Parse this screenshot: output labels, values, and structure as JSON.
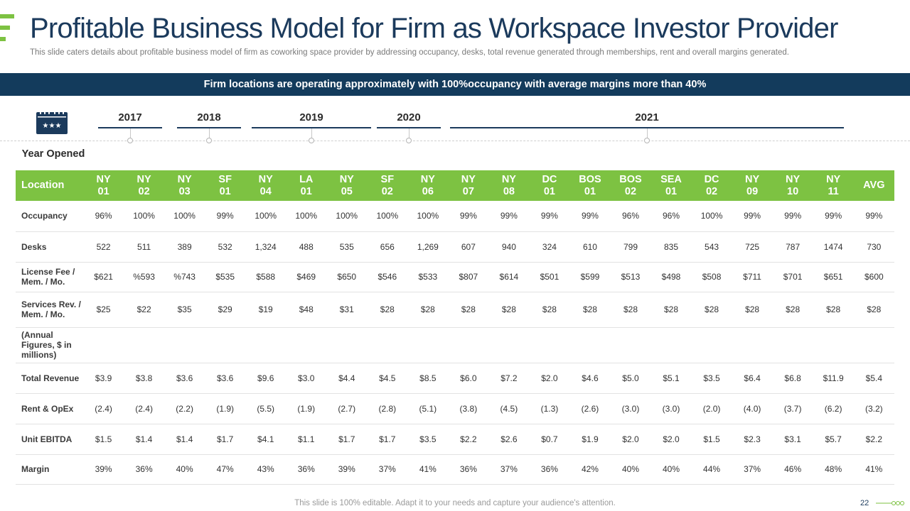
{
  "title": "Profitable Business Model for Firm as Workspace Investor Provider",
  "subtitle": "This slide caters details about profitable business model of firm as coworking space provider  by addressing occupancy, desks, total revenue  generated through memberships, rent and overall  margins generated.",
  "banner": "Firm locations are operating approximately with 100%occupancy  with average margins more than 40%",
  "timeline": {
    "years": [
      "2017",
      "2018",
      "2019",
      "2020",
      "2021"
    ],
    "label": "Year Opened"
  },
  "icons": {
    "calendar": "calendar-icon"
  },
  "colors": {
    "navy": "#1b3a5c",
    "banner": "#133b5c",
    "green": "#7dc242"
  },
  "table": {
    "header_label": "Location",
    "columns": [
      [
        "NY",
        "01"
      ],
      [
        "NY",
        "02"
      ],
      [
        "NY",
        "03"
      ],
      [
        "SF",
        "01"
      ],
      [
        "NY",
        "04"
      ],
      [
        "LA",
        "01"
      ],
      [
        "NY",
        "05"
      ],
      [
        "SF",
        "02"
      ],
      [
        "NY",
        "06"
      ],
      [
        "NY",
        "07"
      ],
      [
        "NY",
        "08"
      ],
      [
        "DC",
        "01"
      ],
      [
        "BOS",
        "01"
      ],
      [
        "BOS",
        "02"
      ],
      [
        "SEA",
        "01"
      ],
      [
        "DC",
        "02"
      ],
      [
        "NY",
        "09"
      ],
      [
        "NY",
        "10"
      ],
      [
        "NY",
        "11"
      ],
      [
        "AVG"
      ]
    ],
    "rows": [
      {
        "label": "Occupancy",
        "values": [
          "96%",
          "100%",
          "100%",
          "99%",
          "100%",
          "100%",
          "100%",
          "100%",
          "100%",
          "99%",
          "99%",
          "99%",
          "99%",
          "96%",
          "96%",
          "100%",
          "99%",
          "99%",
          "99%",
          "99%"
        ]
      },
      {
        "label": "Desks",
        "values": [
          "522",
          "511",
          "389",
          "532",
          "1,324",
          "488",
          "535",
          "656",
          "1,269",
          "607",
          "940",
          "324",
          "610",
          "799",
          "835",
          "543",
          "725",
          "787",
          "1474",
          "730"
        ]
      },
      {
        "label": "License Fee / Mem. / Mo.",
        "values": [
          "$621",
          "%593",
          "%743",
          "$535",
          "$588",
          "$469",
          "$650",
          "$546",
          "$533",
          "$807",
          "$614",
          "$501",
          "$599",
          "$513",
          "$498",
          "$508",
          "$711",
          "$701",
          "$651",
          "$600"
        ]
      },
      {
        "label": "Services Rev.  / Mem. / Mo.",
        "values": [
          "$25",
          "$22",
          "$35",
          "$29",
          "$19",
          "$48",
          "$31",
          "$28",
          "$28",
          "$28",
          "$28",
          "$28",
          "$28",
          "$28",
          "$28",
          "$28",
          "$28",
          "$28",
          "$28",
          "$28"
        ]
      },
      {
        "label": "(Annual Figures,  $ in millions)",
        "values": []
      },
      {
        "label": "Total Revenue",
        "values": [
          "$3.9",
          "$3.8",
          "$3.6",
          "$3.6",
          "$9.6",
          "$3.0",
          "$4.4",
          "$4.5",
          "$8.5",
          "$6.0",
          "$7.2",
          "$2.0",
          "$4.6",
          "$5.0",
          "$5.1",
          "$3.5",
          "$6.4",
          "$6.8",
          "$11.9",
          "$5.4"
        ]
      },
      {
        "label": "Rent & OpEx",
        "values": [
          "(2.4)",
          "(2.4)",
          "(2.2)",
          "(1.9)",
          "(5.5)",
          "(1.9)",
          "(2.7)",
          "(2.8)",
          "(5.1)",
          "(3.8)",
          "(4.5)",
          "(1.3)",
          "(2.6)",
          "(3.0)",
          "(3.0)",
          "(2.0)",
          "(4.0)",
          "(3.7)",
          "(6.2)",
          "(3.2)"
        ]
      },
      {
        "label": "Unit EBITDA",
        "values": [
          "$1.5",
          "$1.4",
          "$1.4",
          "$1.7",
          "$4.1",
          "$1.1",
          "$1.7",
          "$1.7",
          "$3.5",
          "$2.2",
          "$2.6",
          "$0.7",
          "$1.9",
          "$2.0",
          "$2.0",
          "$1.5",
          "$2.3",
          "$3.1",
          "$5.7",
          "$2.2"
        ]
      },
      {
        "label": "Margin",
        "values": [
          "39%",
          "36%",
          "40%",
          "47%",
          "43%",
          "36%",
          "39%",
          "37%",
          "41%",
          "36%",
          "37%",
          "36%",
          "42%",
          "40%",
          "40%",
          "44%",
          "37%",
          "46%",
          "48%",
          "41%"
        ]
      }
    ]
  },
  "footer": {
    "note": "This slide is 100% editable. Adapt it to your needs and capture your audience's attention.",
    "page": "22"
  }
}
